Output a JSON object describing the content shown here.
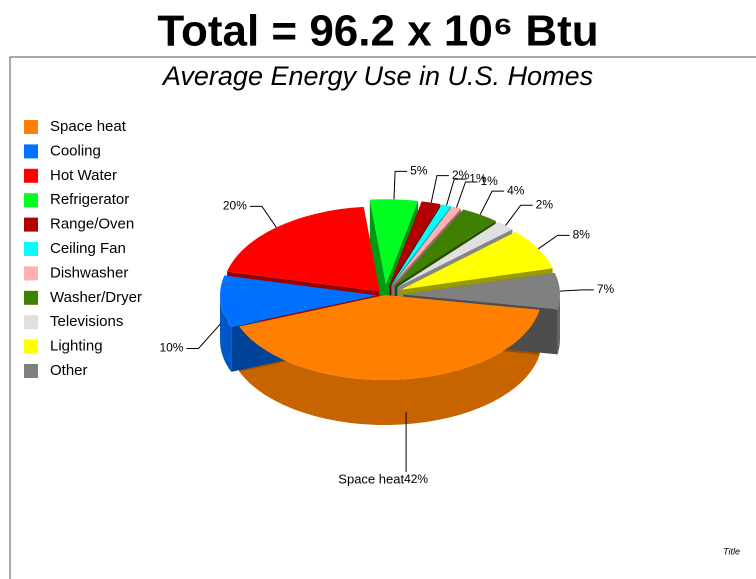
{
  "chart_data": {
    "type": "pie",
    "title": "Total = 96.2 x 10⁶ Btu",
    "subtitle": "Average Energy Use in U.S. Homes",
    "annotation": "Title",
    "categories": [
      "Space heat",
      "Cooling",
      "Hot Water",
      "Refrigerator",
      "Range/Oven",
      "Ceiling Fan",
      "Dishwasher",
      "Washer/Dryer",
      "Televisions",
      "Lighting",
      "Other"
    ],
    "values": [
      42,
      10,
      20,
      5,
      2,
      1,
      1,
      4,
      2,
      8,
      7
    ],
    "value_labels": [
      "42%",
      "10%",
      "20%",
      "5%",
      "2%",
      "1%",
      "1%",
      "4%",
      "2%",
      "8%",
      "7%"
    ],
    "colors": [
      "#ff8000",
      "#0070ff",
      "#ff0000",
      "#00ff20",
      "#b00000",
      "#00ffff",
      "#ffb0b0",
      "#408000",
      "#e0e0e0",
      "#ffff00",
      "#808080"
    ],
    "legend": "left"
  }
}
